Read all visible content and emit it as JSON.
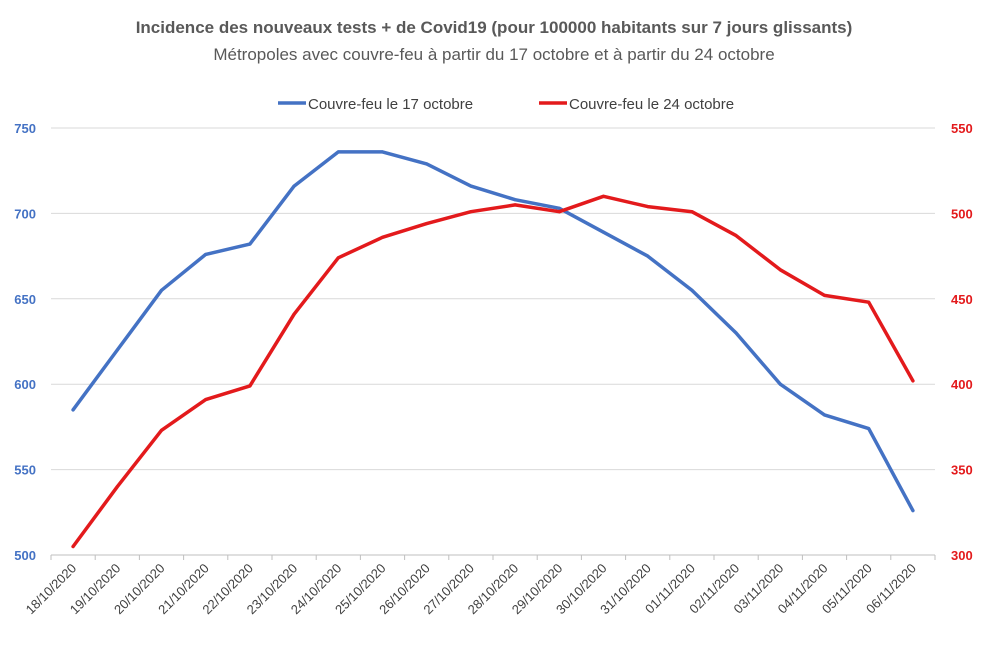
{
  "chart_data": {
    "type": "line",
    "title": "Incidence des nouveaux tests + de Covid19 (pour 100000 habitants sur 7 jours glissants)",
    "subtitle": "Métropoles avec couvre-feu à partir du 17 octobre et à partir du 24 octobre",
    "categories": [
      "18/10/2020",
      "19/10/2020",
      "20/10/2020",
      "21/10/2020",
      "22/10/2020",
      "23/10/2020",
      "24/10/2020",
      "25/10/2020",
      "26/10/2020",
      "27/10/2020",
      "28/10/2020",
      "29/10/2020",
      "30/10/2020",
      "31/10/2020",
      "01/11/2020",
      "02/11/2020",
      "03/11/2020",
      "04/11/2020",
      "05/11/2020",
      "06/11/2020"
    ],
    "series": [
      {
        "name": "Couvre-feu le 17 octobre",
        "axis": "left",
        "color": "#4472C4",
        "values": [
          585,
          620,
          655,
          676,
          682,
          716,
          736,
          736,
          729,
          716,
          708,
          703,
          689,
          675,
          655,
          630,
          600,
          582,
          574,
          526
        ]
      },
      {
        "name": "Couvre-feu le 24 octobre",
        "axis": "right",
        "color": "#E31A1C",
        "values": [
          305,
          340,
          373,
          391,
          399,
          441,
          474,
          486,
          494,
          501,
          505,
          501,
          510,
          504,
          501,
          487,
          467,
          452,
          448,
          402
        ]
      }
    ],
    "y_left": {
      "min": 500,
      "max": 750,
      "ticks": [
        500,
        550,
        600,
        650,
        700,
        750
      ],
      "color": "#4472C4"
    },
    "y_right": {
      "min": 300,
      "max": 550,
      "ticks": [
        300,
        350,
        400,
        450,
        500,
        550
      ],
      "color": "#E31A1C"
    },
    "grid": true,
    "legend": "top-center"
  }
}
